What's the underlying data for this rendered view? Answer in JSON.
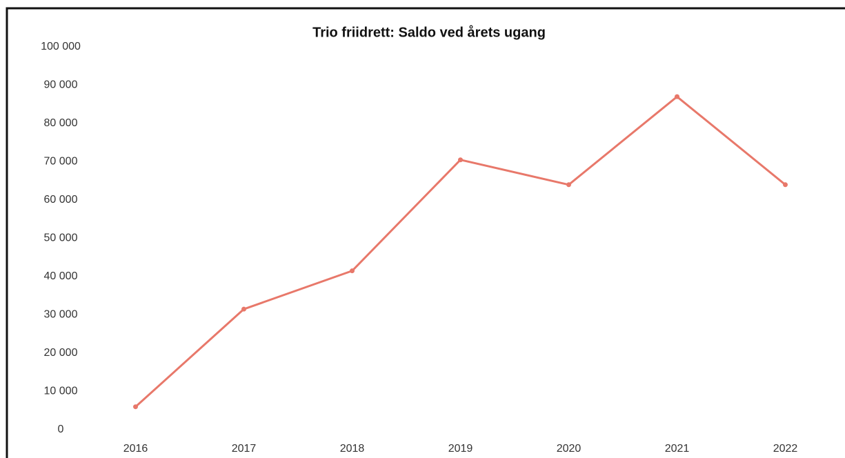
{
  "chart_data": {
    "type": "line",
    "title": "Trio friidrett: Saldo ved årets ugang",
    "categories": [
      "2016",
      "2017",
      "2018",
      "2019",
      "2020",
      "2021",
      "2022"
    ],
    "series": [
      {
        "name": "Saldo",
        "color": "#e8786a",
        "values": [
          6000,
          31500,
          41500,
          70500,
          64000,
          87000,
          64000
        ]
      }
    ],
    "ylim": [
      0,
      100000
    ],
    "yticks": [
      0,
      {
        "value": 10000,
        "label": "10 000"
      },
      {
        "value": 20000,
        "label": "20 000"
      },
      {
        "value": 30000,
        "label": "30 000"
      },
      {
        "value": 40000,
        "label": "40 000"
      },
      {
        "value": 50000,
        "label": "50 000"
      },
      {
        "value": 60000,
        "label": "60 000"
      },
      {
        "value": 70000,
        "label": "70 000"
      },
      {
        "value": 80000,
        "label": "80 000"
      },
      {
        "value": 90000,
        "label": "90 000"
      },
      {
        "value": 100000,
        "label": "100 000"
      }
    ],
    "grid": false
  }
}
